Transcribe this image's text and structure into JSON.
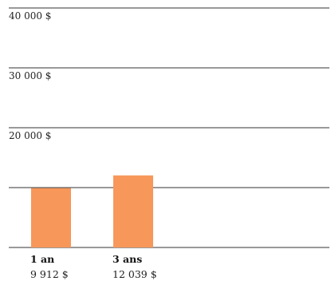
{
  "chart_data": {
    "type": "bar",
    "categories": [
      "1 an",
      "3 ans"
    ],
    "values": [
      9912,
      12039
    ],
    "value_labels": [
      "9 912 $",
      "12 039 $"
    ],
    "title": "",
    "xlabel": "",
    "ylabel": "",
    "ylim": [
      0,
      40000
    ],
    "y_ticks": [
      {
        "value": 10000,
        "label": ""
      },
      {
        "value": 20000,
        "label": "20 000 $"
      },
      {
        "value": 30000,
        "label": "30 000 $"
      },
      {
        "value": 40000,
        "label": "40 000 $"
      }
    ],
    "grid": true,
    "legend": "none",
    "colors": {
      "bar": "#f7975a",
      "grid": "#333333"
    }
  }
}
